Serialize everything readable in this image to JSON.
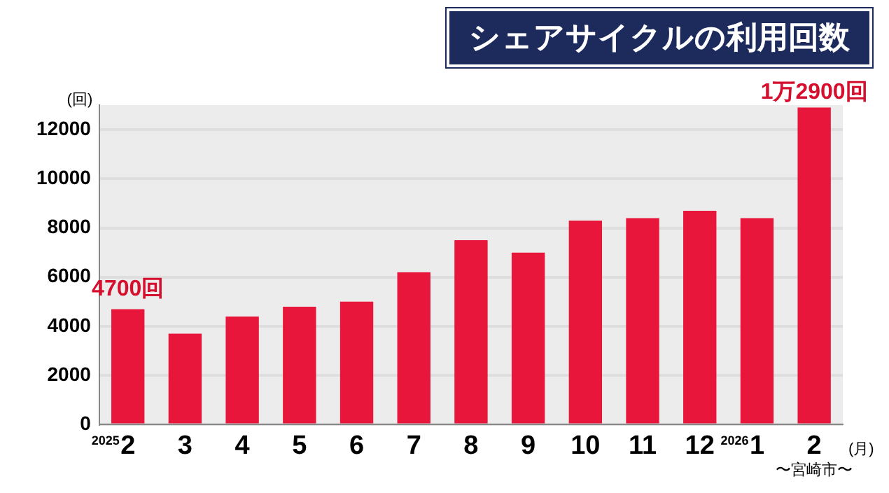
{
  "chart_data": {
    "type": "bar",
    "title": "シェアサイクルの利用回数",
    "ylabel": "(回)",
    "xlabel": "(月)",
    "categories": [
      "2",
      "3",
      "4",
      "5",
      "6",
      "7",
      "8",
      "9",
      "10",
      "11",
      "12",
      "1",
      "2"
    ],
    "values": [
      4700,
      3700,
      4400,
      4800,
      5000,
      6200,
      7500,
      7000,
      8300,
      8400,
      8700,
      8400,
      12900
    ],
    "value_labels": [
      "4700回",
      null,
      null,
      null,
      null,
      null,
      null,
      null,
      null,
      null,
      null,
      null,
      null
    ],
    "color": "#e8163a",
    "ylim": [
      0,
      13000
    ],
    "yticks": [
      0,
      2000,
      4000,
      6000,
      8000,
      10000,
      12000
    ],
    "grid": "y",
    "annotations": [
      "2025",
      "2026",
      "〜宮崎市〜",
      "1万2900回"
    ]
  }
}
